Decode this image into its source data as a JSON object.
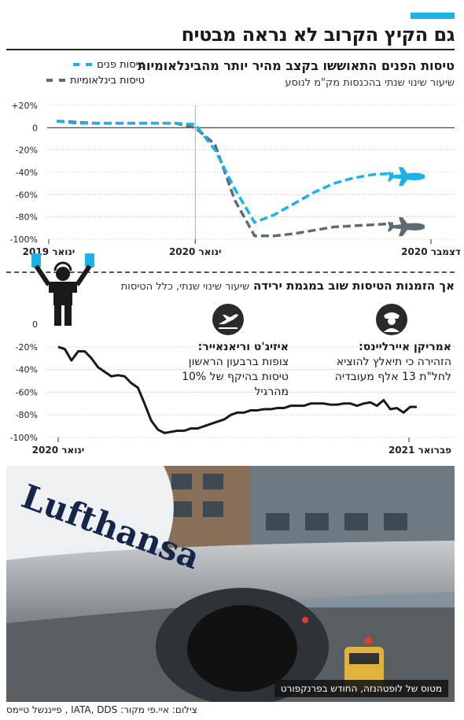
{
  "header": {
    "accent_color": "#1ab3e8",
    "title": "גם הקיץ הקרוב לא נראה מבטיח"
  },
  "chart1": {
    "title": "טיסות הפנים התאוששו בקצב מהיר יותר מהבינלאומיות",
    "subtitle": "שיעור שינוי שנתי בהכנסות מק\"מ לנוסע",
    "legend": [
      {
        "label": "טיסות פנים",
        "color": "#1ab3e8"
      },
      {
        "label": "טיסות בינלאומיות",
        "color": "#5d6b73"
      }
    ]
  },
  "chart2": {
    "title_bold": "אך הזמנות הטיסות שוב במגמת ירידה",
    "title_rest": "שיעור שינוי שנתי, כלל הטיסות"
  },
  "annotations": {
    "american": {
      "heading": "אמריקן איירליינס:",
      "line1": "הזהירה כי תיאלץ להוציא",
      "line2": "לחל\"ת 13 אלף מעובדיה",
      "icon": "pilot-icon"
    },
    "easyjet": {
      "heading": "איזיג'ט וריאנאייר:",
      "line1": "צופות ברבעון הראשון",
      "line2": "טיסות בהיקף של 10%",
      "line3": "מהרגיל",
      "icon": "plane-takeoff-icon"
    }
  },
  "photo": {
    "caption": "מטוס של לופטהנזה, החודש בפרנקפורט",
    "airline_text": "Lufthansa"
  },
  "credits": "צילום: איי.פי   מקור: IATA, DDS , פייננשל טיימס",
  "chart_data": [
    {
      "type": "line",
      "title": "טיסות הפנים התאוששו בקצב מהיר יותר מהבינלאומיות",
      "ylabel": "שיעור שינוי שנתי בהכנסות מק\"מ לנוסע",
      "ylim": [
        -100,
        20
      ],
      "yticks": [
        "+20%",
        "0",
        "-20%",
        "-40%",
        "-60%",
        "-80%",
        "-100%"
      ],
      "xticks": [
        "ינואר 2019",
        "ינואר 2020",
        "דצמבר 2020"
      ],
      "x": [
        "2019-01",
        "2019-03",
        "2019-05",
        "2019-07",
        "2019-09",
        "2019-11",
        "2020-01",
        "2020-02",
        "2020-03",
        "2020-04",
        "2020-05",
        "2020-06",
        "2020-07",
        "2020-08",
        "2020-09",
        "2020-10",
        "2020-11",
        "2020-12"
      ],
      "series": [
        {
          "name": "טיסות פנים",
          "color": "#1ab3e8",
          "values": [
            6,
            4,
            4,
            4,
            4,
            4,
            4,
            3,
            -20,
            -55,
            -85,
            -78,
            -68,
            -58,
            -50,
            -45,
            -42,
            -41
          ]
        },
        {
          "name": "טיסות בינלאומיות",
          "color": "#5d6b73",
          "values": [
            6,
            5,
            4,
            4,
            4,
            4,
            4,
            0,
            -15,
            -65,
            -97,
            -97,
            -95,
            -92,
            -89,
            -88,
            -87,
            -86
          ]
        }
      ],
      "grid": true
    },
    {
      "type": "line",
      "title": "אך הזמנות הטיסות שוב במגמת ירידה",
      "ylabel": "שיעור שינוי שנתי, כלל הטיסות",
      "ylim": [
        -100,
        0
      ],
      "yticks": [
        "0",
        "-20%",
        "-40%",
        "-60%",
        "-80%",
        "-100%"
      ],
      "xticks": [
        "ינואר 2020",
        "פברואר 2021"
      ],
      "series": [
        {
          "name": "",
          "color": "#1a1a1a",
          "values": [
            -20,
            -22,
            -32,
            -24,
            -24,
            -30,
            -38,
            -42,
            -46,
            -45,
            -46,
            -52,
            -56,
            -70,
            -85,
            -93,
            -96,
            -95,
            -94,
            -94,
            -92,
            -92,
            -90,
            -88,
            -86,
            -84,
            -80,
            -78,
            -78,
            -76,
            -76,
            -75,
            -75,
            -74,
            -74,
            -72,
            -72,
            -72,
            -70,
            -70,
            -70,
            -71,
            -71,
            -70,
            -70,
            -72,
            -70,
            -69,
            -72,
            -67,
            -75,
            -74,
            -78,
            -73,
            -73
          ]
        }
      ],
      "grid": true
    }
  ]
}
